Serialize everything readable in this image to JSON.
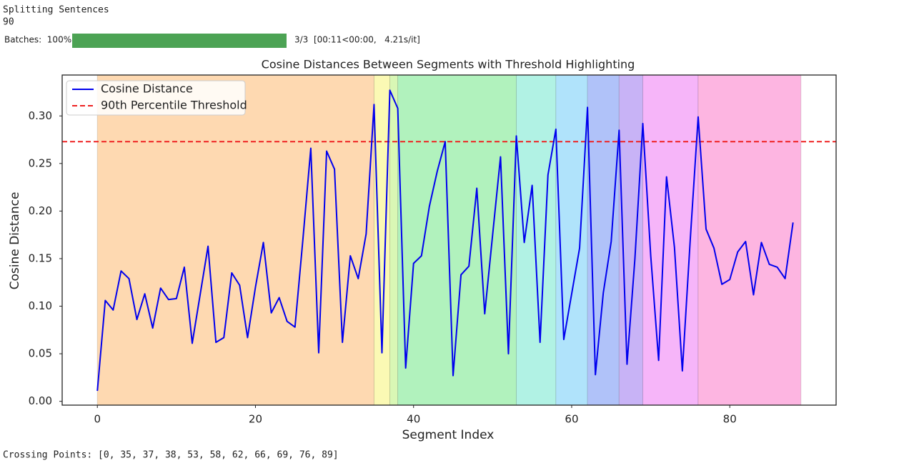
{
  "output": {
    "status": "Splitting Sentences",
    "count": 90,
    "progress": {
      "label": "Batches:  100%",
      "stats": "3/3  [00:11<00:00,   4.21s/it]"
    },
    "crossing_points": "Crossing Points: [0, 35, 37, 38, 53, 58, 62, 66, 69, 76, 89]"
  },
  "chart_data": {
    "type": "line",
    "title": "Cosine Distances Between Segments with Threshold Highlighting",
    "x_label": "Segment Index",
    "y_label": "Cosine Distance",
    "x": [
      0,
      1,
      2,
      3,
      4,
      5,
      6,
      7,
      8,
      9,
      10,
      11,
      12,
      13,
      14,
      15,
      16,
      17,
      18,
      19,
      20,
      21,
      22,
      23,
      24,
      25,
      26,
      27,
      28,
      29,
      30,
      31,
      32,
      33,
      34,
      35,
      36,
      37,
      38,
      39,
      40,
      41,
      42,
      43,
      44,
      45,
      46,
      47,
      48,
      49,
      50,
      51,
      52,
      53,
      54,
      55,
      56,
      57,
      58,
      59,
      60,
      61,
      62,
      63,
      64,
      65,
      66,
      67,
      68,
      69,
      70,
      71,
      72,
      73,
      74,
      75,
      76,
      77,
      78,
      79,
      80,
      81,
      82,
      83,
      84,
      85,
      86,
      87,
      88
    ],
    "series": [
      {
        "name": "Cosine Distance",
        "color": "#0000ee",
        "values": [
          0.011,
          0.106,
          0.096,
          0.137,
          0.129,
          0.086,
          0.113,
          0.077,
          0.119,
          0.107,
          0.108,
          0.141,
          0.061,
          0.112,
          0.163,
          0.062,
          0.067,
          0.135,
          0.122,
          0.067,
          0.12,
          0.167,
          0.093,
          0.109,
          0.084,
          0.078,
          0.17,
          0.266,
          0.051,
          0.263,
          0.244,
          0.062,
          0.153,
          0.129,
          0.176,
          0.312,
          0.051,
          0.327,
          0.308,
          0.035,
          0.145,
          0.153,
          0.205,
          0.242,
          0.273,
          0.027,
          0.133,
          0.142,
          0.224,
          0.092,
          0.175,
          0.257,
          0.05,
          0.279,
          0.167,
          0.227,
          0.062,
          0.238,
          0.286,
          0.065,
          0.113,
          0.161,
          0.309,
          0.028,
          0.114,
          0.168,
          0.285,
          0.039,
          0.15,
          0.292,
          0.153,
          0.043,
          0.236,
          0.162,
          0.032,
          0.17,
          0.299,
          0.181,
          0.161,
          0.123,
          0.128,
          0.157,
          0.168,
          0.112,
          0.167,
          0.144,
          0.141,
          0.129,
          0.188
        ]
      }
    ],
    "threshold": {
      "name": "90th Percentile Threshold",
      "color": "#ee2222",
      "value": 0.273
    },
    "spans": {
      "bounds": [
        0,
        35,
        37,
        38,
        53,
        58,
        62,
        66,
        69,
        76,
        89
      ],
      "colors": [
        "#fed9b1",
        "#fbf9b4",
        "#d9f7b5",
        "#b1f2bd",
        "#b1f2e4",
        "#b0e3fb",
        "#b0c2f9",
        "#c8b3f6",
        "#f6b5f9",
        "#fdb5e1"
      ]
    },
    "xlim": [
      -4.45,
      93.45
    ],
    "ylim": [
      -0.004,
      0.343
    ],
    "xticks": [
      0,
      20,
      40,
      60,
      80
    ],
    "yticks": [
      {
        "value": 0,
        "label": "0.00"
      },
      0.05,
      {
        "value": 0.1,
        "label": "0.10"
      },
      0.15,
      {
        "value": 0.2,
        "label": "0.20"
      },
      0.25,
      {
        "value": 0.3,
        "label": "0.30"
      }
    ],
    "legend": "upper left",
    "grid": false
  }
}
